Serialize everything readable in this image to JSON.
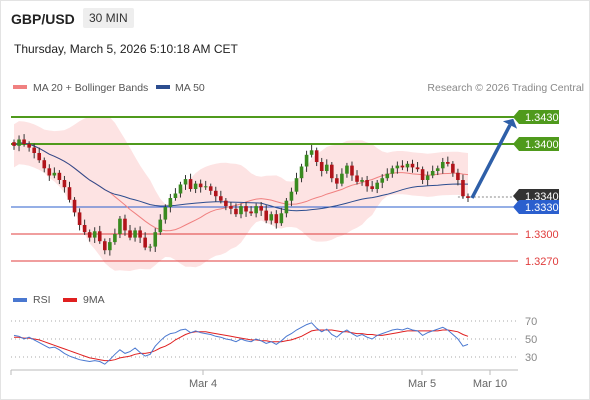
{
  "header": {
    "symbol": "GBP/USD",
    "timeframe": "30 MIN",
    "datetime": "Thursday, March 5, 2026 5:10:18 AM CET"
  },
  "legend": {
    "ma20_label": "MA 20 + Bollinger Bands",
    "ma50_label": "MA 50",
    "credit": "Research © 2026 Trading Central",
    "ma20_color": "#f08080",
    "ma50_color": "#2c4d8f"
  },
  "rsi_legend": {
    "rsi_label": "RSI",
    "ma_label": "9MA",
    "rsi_color": "#4a78d0",
    "ma_color": "#e02020"
  },
  "chart_data": {
    "type": "candlestick",
    "ylim": [
      1.3245,
      1.3455
    ],
    "levels": [
      {
        "value": 1.343,
        "label": "1.3430",
        "kind": "resistance",
        "color": "#4f9a1c"
      },
      {
        "value": 1.34,
        "label": "1.3400",
        "kind": "resistance",
        "color": "#4f9a1c"
      },
      {
        "value": 1.334,
        "label": "1.3340",
        "kind": "current",
        "color": "#333333"
      },
      {
        "value": 1.333,
        "label": "1.3330",
        "kind": "pivot",
        "color": "#2b5fce"
      },
      {
        "value": 1.33,
        "label": "1.3300",
        "kind": "support",
        "color": "#e03c3c"
      },
      {
        "value": 1.327,
        "label": "1.3270",
        "kind": "support",
        "color": "#e03c3c"
      }
    ],
    "x_ticks": [
      "Mar 4",
      "Mar 5",
      "Mar 10"
    ],
    "closes": [
      1.3398,
      1.3405,
      1.34,
      1.3396,
      1.339,
      1.3382,
      1.3373,
      1.3365,
      1.3368,
      1.336,
      1.3352,
      1.3338,
      1.3324,
      1.331,
      1.3302,
      1.3296,
      1.3303,
      1.3292,
      1.3282,
      1.3291,
      1.33,
      1.3317,
      1.3304,
      1.3296,
      1.3304,
      1.3296,
      1.3285,
      1.3286,
      1.3302,
      1.3316,
      1.333,
      1.334,
      1.3345,
      1.3355,
      1.3361,
      1.335,
      1.3356,
      1.3352,
      1.3353,
      1.3348,
      1.3342,
      1.3337,
      1.3331,
      1.3328,
      1.3322,
      1.3331,
      1.3325,
      1.3323,
      1.3331,
      1.3326,
      1.3315,
      1.3322,
      1.3312,
      1.3323,
      1.3337,
      1.3347,
      1.3362,
      1.3375,
      1.3388,
      1.3393,
      1.338,
      1.337,
      1.3377,
      1.3362,
      1.3356,
      1.3367,
      1.3376,
      1.3365,
      1.3358,
      1.336,
      1.3353,
      1.335,
      1.3357,
      1.3362,
      1.3367,
      1.3373,
      1.3376,
      1.3374,
      1.3378,
      1.3374,
      1.3372,
      1.336,
      1.3365,
      1.337,
      1.3373,
      1.338,
      1.3378,
      1.3368,
      1.336,
      1.3342,
      1.334
    ],
    "rsi_axis": {
      "ticks": [
        70,
        50,
        30
      ],
      "ylim": [
        15,
        80
      ]
    },
    "rsi": [
      54,
      53,
      50,
      52,
      49,
      46,
      43,
      40,
      41,
      38,
      34,
      31,
      29,
      27,
      26,
      25,
      26,
      25,
      22,
      27,
      33,
      38,
      34,
      36,
      40,
      35,
      31,
      33,
      42,
      48,
      53,
      56,
      57,
      60,
      61,
      57,
      59,
      57,
      56,
      55,
      53,
      52,
      50,
      49,
      47,
      50,
      48,
      47,
      50,
      48,
      45,
      47,
      44,
      48,
      53,
      56,
      60,
      63,
      66,
      68,
      62,
      58,
      61,
      55,
      52,
      57,
      60,
      56,
      53,
      55,
      52,
      50,
      54,
      56,
      58,
      60,
      61,
      60,
      62,
      60,
      59,
      54,
      57,
      59,
      61,
      63,
      60,
      55,
      50,
      42,
      44
    ],
    "rsi_ma": [
      52,
      52,
      51,
      51,
      50,
      49,
      47,
      45,
      43,
      41,
      39,
      37,
      35,
      33,
      31,
      29,
      28,
      27,
      26,
      26,
      27,
      29,
      30,
      31,
      33,
      34,
      34,
      35,
      37,
      40,
      42,
      45,
      49,
      52,
      55,
      57,
      58,
      58,
      58,
      57,
      56,
      55,
      54,
      53,
      52,
      51,
      50,
      49,
      49,
      48,
      48,
      47,
      47,
      47,
      48,
      49,
      51,
      53,
      56,
      59,
      60,
      60,
      60,
      60,
      59,
      58,
      58,
      57,
      56,
      56,
      55,
      55,
      54,
      54,
      55,
      56,
      57,
      58,
      59,
      59,
      59,
      59,
      59,
      59,
      59,
      60,
      60,
      59,
      58,
      55,
      53
    ]
  }
}
